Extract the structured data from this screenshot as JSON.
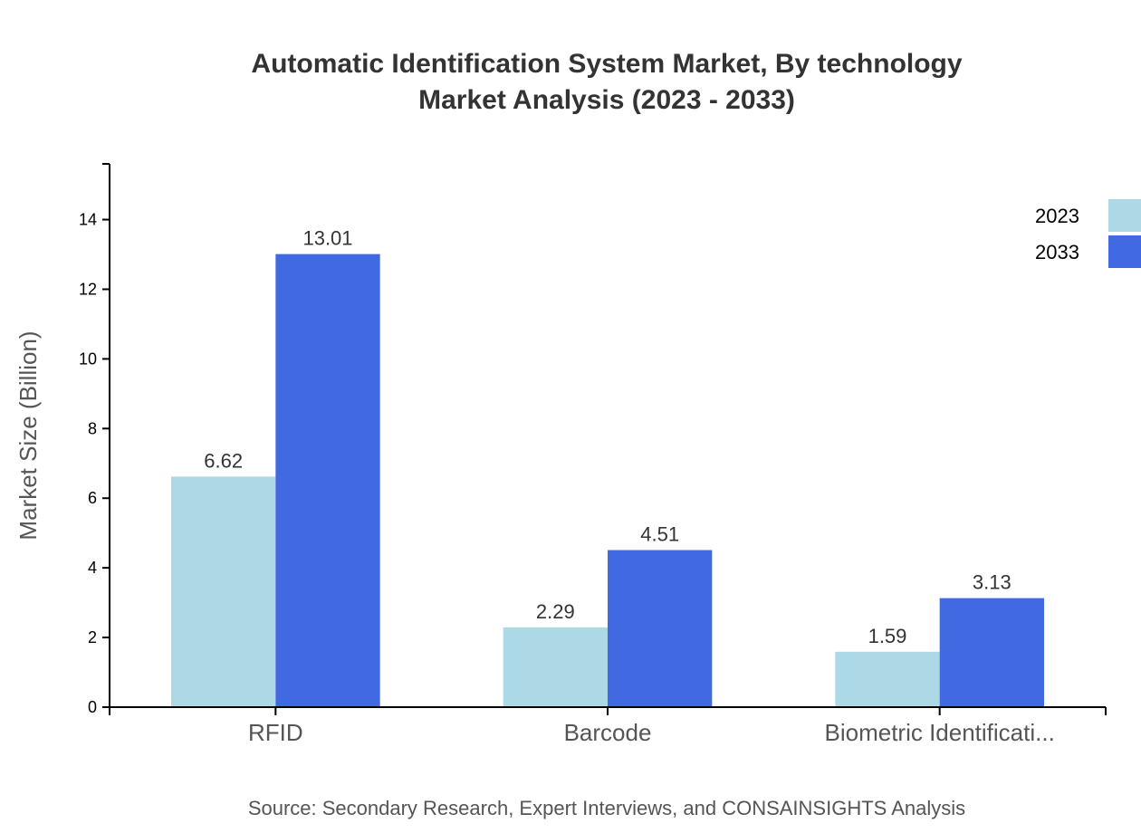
{
  "chart_data": {
    "type": "bar",
    "title": [
      "Automatic Identification System Market, By technology",
      "Market Analysis (2023 - 2033)"
    ],
    "xlabel": "",
    "ylabel": "Market Size (Billion)",
    "categories": [
      "RFID",
      "Barcode",
      "Biometric Identificati..."
    ],
    "series": [
      {
        "name": "2023",
        "color": "#ADD8E6",
        "values": [
          6.62,
          2.29,
          1.59
        ]
      },
      {
        "name": "2033",
        "color": "#4169E1",
        "values": [
          13.01,
          4.51,
          3.13
        ]
      }
    ],
    "yticks": [
      0,
      2,
      4,
      6,
      8,
      10,
      12,
      14
    ],
    "ylim": [
      0,
      15.6
    ],
    "grid": false,
    "legend": "top-right",
    "source": "Source: Secondary Research, Expert Interviews, and CONSAINSIGHTS Analysis"
  }
}
